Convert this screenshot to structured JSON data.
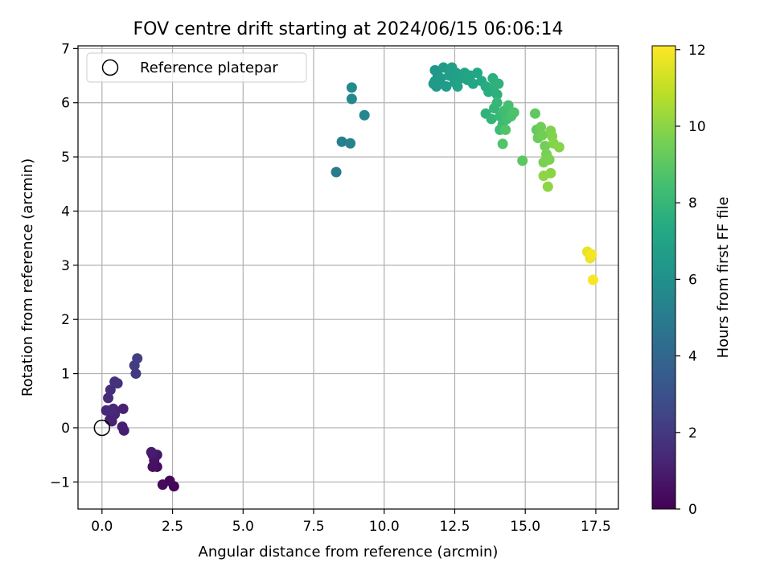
{
  "chart_data": {
    "type": "scatter",
    "title": "FOV centre drift starting at 2024/06/15 06:06:14",
    "xlabel": "Angular distance from reference (arcmin)",
    "ylabel": "Rotation from reference (arcmin)",
    "xlim": [
      -0.85,
      18.3
    ],
    "ylim": [
      -1.5,
      7.05
    ],
    "xticks": [
      0.0,
      2.5,
      5.0,
      7.5,
      10.0,
      12.5,
      15.0,
      17.5
    ],
    "xtick_labels": [
      "0.0",
      "2.5",
      "5.0",
      "7.5",
      "10.0",
      "12.5",
      "15.0",
      "17.5"
    ],
    "yticks": [
      -1,
      0,
      1,
      2,
      3,
      4,
      5,
      6,
      7
    ],
    "ytick_labels": [
      "−1",
      "0",
      "1",
      "2",
      "3",
      "4",
      "5",
      "6",
      "7"
    ],
    "grid": true,
    "legend": {
      "placement": "top-left",
      "entries": [
        {
          "label": "Reference platepar",
          "marker": "open-circle",
          "x": 0,
          "y": 0
        }
      ]
    },
    "colorbar": {
      "label": "Hours from first FF file",
      "colormap": "viridis",
      "range": [
        0,
        12.1
      ],
      "ticks": [
        0,
        2,
        4,
        6,
        8,
        10,
        12
      ],
      "tick_labels": [
        "0",
        "2",
        "4",
        "6",
        "8",
        "10",
        "12"
      ]
    },
    "points": [
      {
        "x": 2.55,
        "y": -1.08,
        "c": 0.1
      },
      {
        "x": 2.4,
        "y": -0.98,
        "c": 0.2
      },
      {
        "x": 2.15,
        "y": -1.05,
        "c": 0.3
      },
      {
        "x": 1.95,
        "y": -0.72,
        "c": 0.4
      },
      {
        "x": 1.8,
        "y": -0.72,
        "c": 0.5
      },
      {
        "x": 1.85,
        "y": -0.6,
        "c": 0.6
      },
      {
        "x": 1.95,
        "y": -0.5,
        "c": 0.7
      },
      {
        "x": 1.8,
        "y": -0.5,
        "c": 0.8
      },
      {
        "x": 1.75,
        "y": -0.45,
        "c": 0.9
      },
      {
        "x": 0.78,
        "y": -0.05,
        "c": 1.0
      },
      {
        "x": 0.72,
        "y": 0.02,
        "c": 1.05
      },
      {
        "x": 0.75,
        "y": 0.35,
        "c": 1.1
      },
      {
        "x": 0.35,
        "y": 0.12,
        "c": 1.15
      },
      {
        "x": 0.28,
        "y": 0.15,
        "c": 1.2
      },
      {
        "x": 0.45,
        "y": 0.25,
        "c": 1.3
      },
      {
        "x": 0.4,
        "y": 0.35,
        "c": 1.35
      },
      {
        "x": 0.15,
        "y": 0.32,
        "c": 1.4
      },
      {
        "x": 0.3,
        "y": 0.32,
        "c": 1.45
      },
      {
        "x": 0.22,
        "y": 0.55,
        "c": 1.5
      },
      {
        "x": 0.3,
        "y": 0.7,
        "c": 1.6
      },
      {
        "x": 0.55,
        "y": 0.82,
        "c": 1.65
      },
      {
        "x": 0.45,
        "y": 0.85,
        "c": 1.7
      },
      {
        "x": 1.2,
        "y": 1.0,
        "c": 2.0
      },
      {
        "x": 1.15,
        "y": 1.15,
        "c": 2.1
      },
      {
        "x": 1.25,
        "y": 1.28,
        "c": 2.2
      },
      {
        "x": 8.3,
        "y": 4.72,
        "c": 5.0
      },
      {
        "x": 8.5,
        "y": 5.28,
        "c": 5.2
      },
      {
        "x": 8.8,
        "y": 5.25,
        "c": 5.3
      },
      {
        "x": 9.3,
        "y": 5.77,
        "c": 5.5
      },
      {
        "x": 8.85,
        "y": 6.07,
        "c": 5.6
      },
      {
        "x": 8.85,
        "y": 6.28,
        "c": 5.7
      },
      {
        "x": 11.8,
        "y": 6.6,
        "c": 6.3
      },
      {
        "x": 11.9,
        "y": 6.5,
        "c": 6.35
      },
      {
        "x": 11.8,
        "y": 6.4,
        "c": 6.4
      },
      {
        "x": 11.85,
        "y": 6.3,
        "c": 6.45
      },
      {
        "x": 11.75,
        "y": 6.35,
        "c": 6.5
      },
      {
        "x": 12.0,
        "y": 6.45,
        "c": 6.5
      },
      {
        "x": 12.1,
        "y": 6.65,
        "c": 6.55
      },
      {
        "x": 12.0,
        "y": 6.35,
        "c": 6.6
      },
      {
        "x": 12.2,
        "y": 6.3,
        "c": 6.65
      },
      {
        "x": 12.3,
        "y": 6.5,
        "c": 6.7
      },
      {
        "x": 12.4,
        "y": 6.65,
        "c": 6.75
      },
      {
        "x": 12.55,
        "y": 6.55,
        "c": 6.8
      },
      {
        "x": 12.5,
        "y": 6.38,
        "c": 6.85
      },
      {
        "x": 12.7,
        "y": 6.45,
        "c": 6.9
      },
      {
        "x": 12.6,
        "y": 6.3,
        "c": 6.95
      },
      {
        "x": 12.85,
        "y": 6.55,
        "c": 7.0
      },
      {
        "x": 12.95,
        "y": 6.42,
        "c": 7.05
      },
      {
        "x": 13.05,
        "y": 6.5,
        "c": 7.1
      },
      {
        "x": 13.15,
        "y": 6.35,
        "c": 7.15
      },
      {
        "x": 13.3,
        "y": 6.55,
        "c": 7.2
      },
      {
        "x": 13.45,
        "y": 6.4,
        "c": 7.3
      },
      {
        "x": 13.6,
        "y": 6.3,
        "c": 7.4
      },
      {
        "x": 13.7,
        "y": 6.2,
        "c": 7.5
      },
      {
        "x": 13.85,
        "y": 6.45,
        "c": 7.6
      },
      {
        "x": 13.9,
        "y": 6.3,
        "c": 7.65
      },
      {
        "x": 14.0,
        "y": 6.15,
        "c": 7.7
      },
      {
        "x": 14.05,
        "y": 6.35,
        "c": 7.75
      },
      {
        "x": 13.6,
        "y": 5.8,
        "c": 7.8
      },
      {
        "x": 13.8,
        "y": 5.7,
        "c": 7.9
      },
      {
        "x": 13.9,
        "y": 5.9,
        "c": 7.95
      },
      {
        "x": 14.0,
        "y": 6.0,
        "c": 8.0
      },
      {
        "x": 14.1,
        "y": 5.75,
        "c": 8.1
      },
      {
        "x": 14.2,
        "y": 5.6,
        "c": 8.2
      },
      {
        "x": 14.1,
        "y": 5.5,
        "c": 8.3
      },
      {
        "x": 14.25,
        "y": 5.85,
        "c": 8.35
      },
      {
        "x": 14.35,
        "y": 5.7,
        "c": 8.4
      },
      {
        "x": 14.4,
        "y": 5.95,
        "c": 8.5
      },
      {
        "x": 14.5,
        "y": 5.75,
        "c": 8.6
      },
      {
        "x": 14.6,
        "y": 5.82,
        "c": 8.7
      },
      {
        "x": 14.3,
        "y": 5.5,
        "c": 8.75
      },
      {
        "x": 14.2,
        "y": 5.24,
        "c": 8.8
      },
      {
        "x": 14.9,
        "y": 4.93,
        "c": 9.0
      },
      {
        "x": 15.35,
        "y": 5.8,
        "c": 9.1
      },
      {
        "x": 15.4,
        "y": 5.5,
        "c": 9.2
      },
      {
        "x": 15.45,
        "y": 5.35,
        "c": 9.3
      },
      {
        "x": 15.55,
        "y": 5.55,
        "c": 9.4
      },
      {
        "x": 15.6,
        "y": 5.4,
        "c": 9.45
      },
      {
        "x": 15.7,
        "y": 5.2,
        "c": 9.5
      },
      {
        "x": 15.75,
        "y": 5.05,
        "c": 9.6
      },
      {
        "x": 15.65,
        "y": 4.9,
        "c": 9.65
      },
      {
        "x": 15.85,
        "y": 4.95,
        "c": 9.7
      },
      {
        "x": 15.9,
        "y": 5.48,
        "c": 9.75
      },
      {
        "x": 15.95,
        "y": 5.38,
        "c": 9.8
      },
      {
        "x": 16.0,
        "y": 5.25,
        "c": 9.85
      },
      {
        "x": 16.2,
        "y": 5.18,
        "c": 9.9
      },
      {
        "x": 15.9,
        "y": 4.7,
        "c": 9.95
      },
      {
        "x": 15.65,
        "y": 4.65,
        "c": 10.0
      },
      {
        "x": 15.8,
        "y": 4.45,
        "c": 10.05
      },
      {
        "x": 17.2,
        "y": 3.25,
        "c": 11.7
      },
      {
        "x": 17.3,
        "y": 3.13,
        "c": 11.8
      },
      {
        "x": 17.35,
        "y": 3.2,
        "c": 11.9
      },
      {
        "x": 17.4,
        "y": 2.73,
        "c": 12.0
      }
    ]
  }
}
